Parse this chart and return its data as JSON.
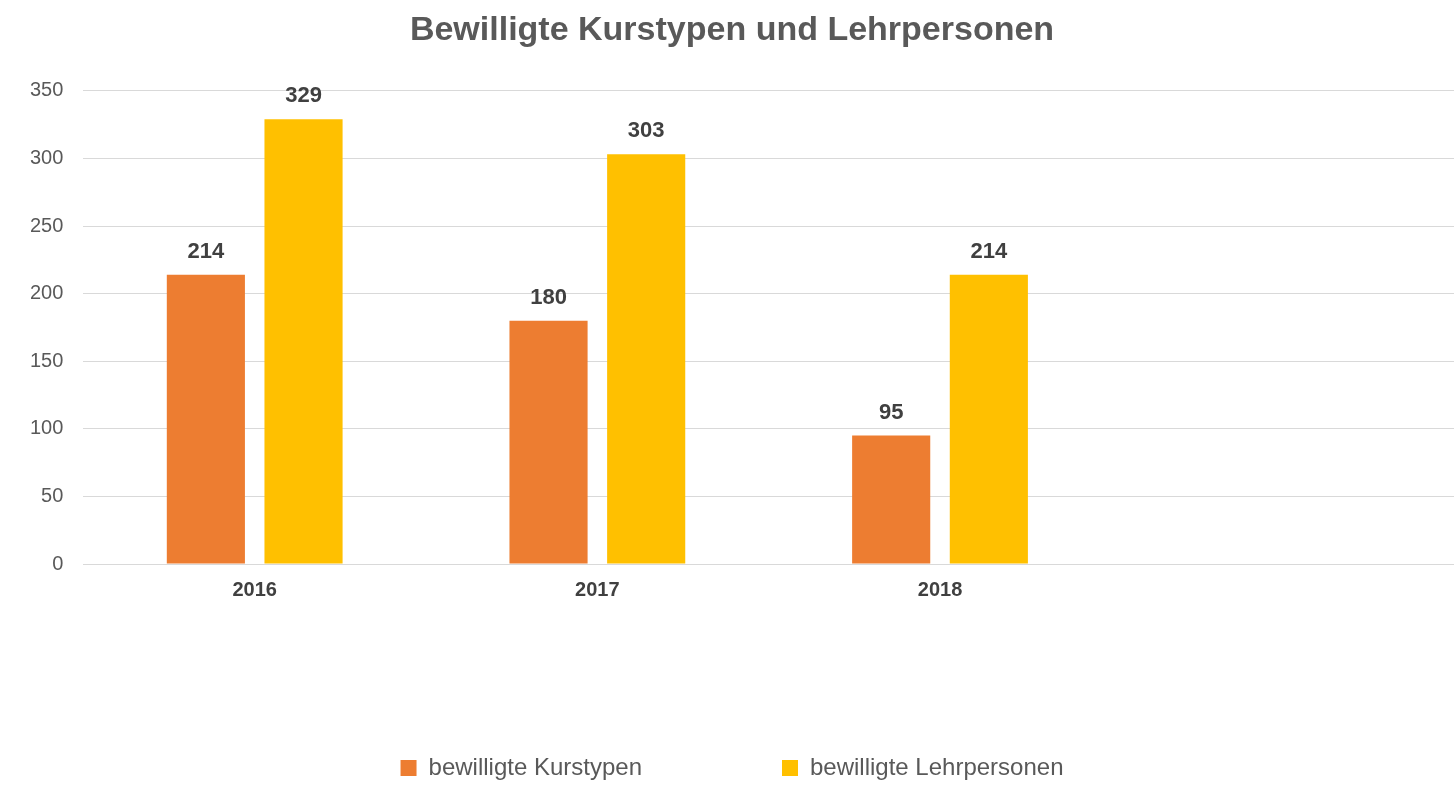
{
  "chart_data": {
    "type": "bar",
    "title": "Bewilligte Kurstypen und Lehrpersonen",
    "categories": [
      "2016",
      "2017",
      "2018",
      null
    ],
    "series": [
      {
        "name": "bewilligte Kurstypen",
        "color": "#ed7d31",
        "values": [
          214,
          180,
          95,
          null
        ]
      },
      {
        "name": "bewilligte Lehrpersonen",
        "color": "#ffc000",
        "values": [
          329,
          303,
          214,
          null
        ]
      }
    ],
    "ylim": [
      0,
      350
    ],
    "yticks": [
      0,
      50,
      100,
      150,
      200,
      250,
      300,
      350
    ],
    "grid": "y",
    "legend": "bottom",
    "data_labels": true
  }
}
